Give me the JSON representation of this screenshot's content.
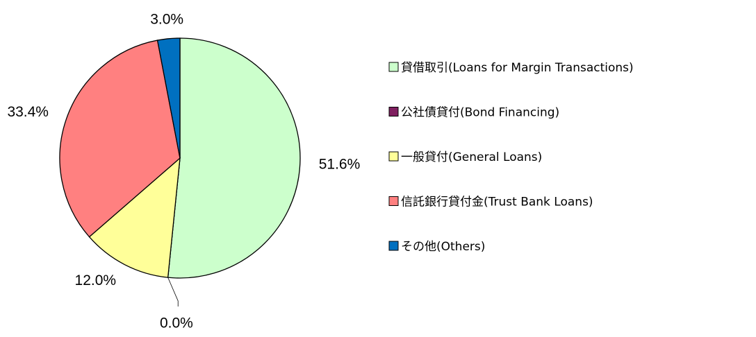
{
  "chart_data": {
    "type": "pie",
    "categories": [
      "貸借取引(Loans for Margin Transactions)",
      "公社債貸付(Bond Financing)",
      "一般貸付(General Loans)",
      "信託銀行貸付金(Trust Bank Loans)",
      "その他(Others)"
    ],
    "values": [
      51.6,
      0.0,
      12.0,
      33.4,
      3.0
    ],
    "value_labels": [
      "51.6%",
      "0.0%",
      "12.0%",
      "33.4%",
      "3.0%"
    ],
    "colors": [
      "#ccffcc",
      "#7f1f5f",
      "#ffff99",
      "#ff8080",
      "#0070c0"
    ],
    "legend": "right"
  }
}
